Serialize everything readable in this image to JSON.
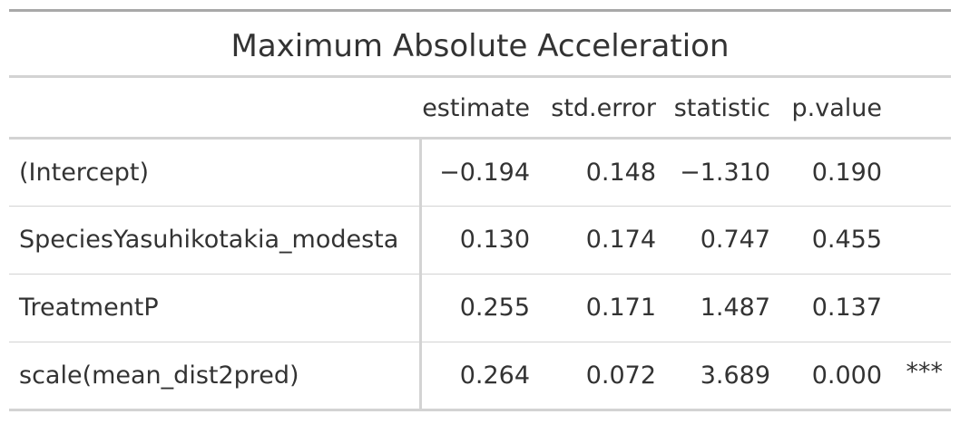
{
  "title": "Maximum Absolute Acceleration",
  "columns": {
    "term": "",
    "estimate": "estimate",
    "std_error": "std.error",
    "statistic": "statistic",
    "p_value": "p.value",
    "signif": ""
  },
  "rows": [
    {
      "term": "(Intercept)",
      "estimate": "−0.194",
      "std_error": "0.148",
      "statistic": "−1.310",
      "p_value": "0.190",
      "signif": ""
    },
    {
      "term": "SpeciesYasuhikotakia_modesta",
      "estimate": "0.130",
      "std_error": "0.174",
      "statistic": "0.747",
      "p_value": "0.455",
      "signif": ""
    },
    {
      "term": "TreatmentP",
      "estimate": "0.255",
      "std_error": "0.171",
      "statistic": "1.487",
      "p_value": "0.137",
      "signif": ""
    },
    {
      "term": "scale(mean_dist2pred)",
      "estimate": "0.264",
      "std_error": "0.072",
      "statistic": "3.689",
      "p_value": "0.000",
      "signif": "***"
    }
  ]
}
